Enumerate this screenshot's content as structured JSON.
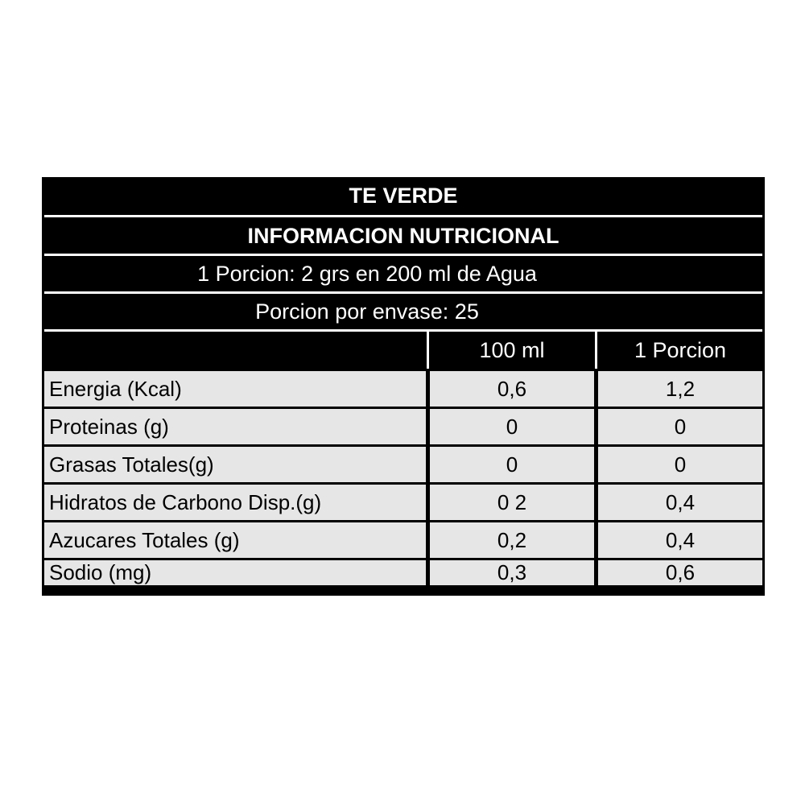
{
  "title": "TE VERDE",
  "subtitle": "INFORMACION NUTRICIONAL",
  "serving": "1 Porcion: 2 grs en 200 ml de Agua",
  "servings_per_container": "Porcion por envase: 25",
  "columns": [
    "",
    "100 ml",
    "1 Porcion"
  ],
  "rows": [
    {
      "label": "Energia (Kcal)",
      "per100": "0,6",
      "perPortion": "1,2"
    },
    {
      "label": "Proteinas (g)",
      "per100": "0",
      "perPortion": "0"
    },
    {
      "label": "Grasas Totales(g)",
      "per100": "0",
      "perPortion": "0"
    },
    {
      "label": "Hidratos de Carbono Disp.(g)",
      "per100": "0 2",
      "perPortion": "0,4"
    },
    {
      "label": "Azucares Totales (g)",
      "per100": "0,2",
      "perPortion": "0,4"
    },
    {
      "label": "Sodio (mg)",
      "per100": "0,3",
      "perPortion": "0,6"
    }
  ],
  "colors": {
    "header_bg": "#000000",
    "row_bg": "#e6e6e6",
    "header_text": "#ffffff"
  }
}
